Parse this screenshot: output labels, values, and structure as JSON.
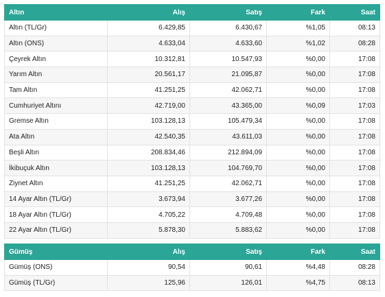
{
  "gold": {
    "headers": {
      "name": "Altın",
      "buy": "Alış",
      "sell": "Satış",
      "diff": "Fark",
      "time": "Saat"
    },
    "rows": [
      {
        "name": "Altın (TL/Gr)",
        "buy": "6.429,85",
        "sell": "6.430,67",
        "diff": "%1,05",
        "time": "08:13"
      },
      {
        "name": "Altın (ONS)",
        "buy": "4.633,04",
        "sell": "4.633,60",
        "diff": "%1,02",
        "time": "08:28"
      },
      {
        "name": "Çeyrek Altın",
        "buy": "10.312,81",
        "sell": "10.547,93",
        "diff": "%0,00",
        "time": "17:08"
      },
      {
        "name": "Yarım Altın",
        "buy": "20.561,17",
        "sell": "21.095,87",
        "diff": "%0,00",
        "time": "17:08"
      },
      {
        "name": "Tam Altın",
        "buy": "41.251,25",
        "sell": "42.062,71",
        "diff": "%0,00",
        "time": "17:08"
      },
      {
        "name": "Cumhuriyet Altını",
        "buy": "42.719,00",
        "sell": "43.365,00",
        "diff": "%0,09",
        "time": "17:03"
      },
      {
        "name": "Gremse Altın",
        "buy": "103.128,13",
        "sell": "105.479,34",
        "diff": "%0,00",
        "time": "17:08"
      },
      {
        "name": "Ata Altın",
        "buy": "42.540,35",
        "sell": "43.611,03",
        "diff": "%0,00",
        "time": "17:08"
      },
      {
        "name": "Beşli Altın",
        "buy": "208.834,46",
        "sell": "212.894,09",
        "diff": "%0,00",
        "time": "17:08"
      },
      {
        "name": "İkibuçuk Altın",
        "buy": "103.128,13",
        "sell": "104.769,70",
        "diff": "%0,00",
        "time": "17:08"
      },
      {
        "name": "Ziynet Altın",
        "buy": "41.251,25",
        "sell": "42.062,71",
        "diff": "%0,00",
        "time": "17:08"
      },
      {
        "name": "14 Ayar Altın (TL/Gr)",
        "buy": "3.673,94",
        "sell": "3.677,26",
        "diff": "%0,00",
        "time": "17:08"
      },
      {
        "name": "18 Ayar Altın (TL/Gr)",
        "buy": "4.705,22",
        "sell": "4.709,48",
        "diff": "%0,00",
        "time": "17:08"
      },
      {
        "name": "22 Ayar Altın (TL/Gr)",
        "buy": "5.878,30",
        "sell": "5.883,62",
        "diff": "%0,00",
        "time": "17:08"
      }
    ]
  },
  "silver": {
    "headers": {
      "name": "Gümüş",
      "buy": "Alış",
      "sell": "Satış",
      "diff": "Fark",
      "time": "Saat"
    },
    "rows": [
      {
        "name": "Gümüş (ONS)",
        "buy": "90,54",
        "sell": "90,61",
        "diff": "%4,48",
        "time": "08:28"
      },
      {
        "name": "Gümüş (TL/Gr)",
        "buy": "125,96",
        "sell": "126,01",
        "diff": "%4,75",
        "time": "08:13"
      }
    ]
  },
  "colors": {
    "header_bg": "#2aa596",
    "header_text": "#ffffff"
  }
}
